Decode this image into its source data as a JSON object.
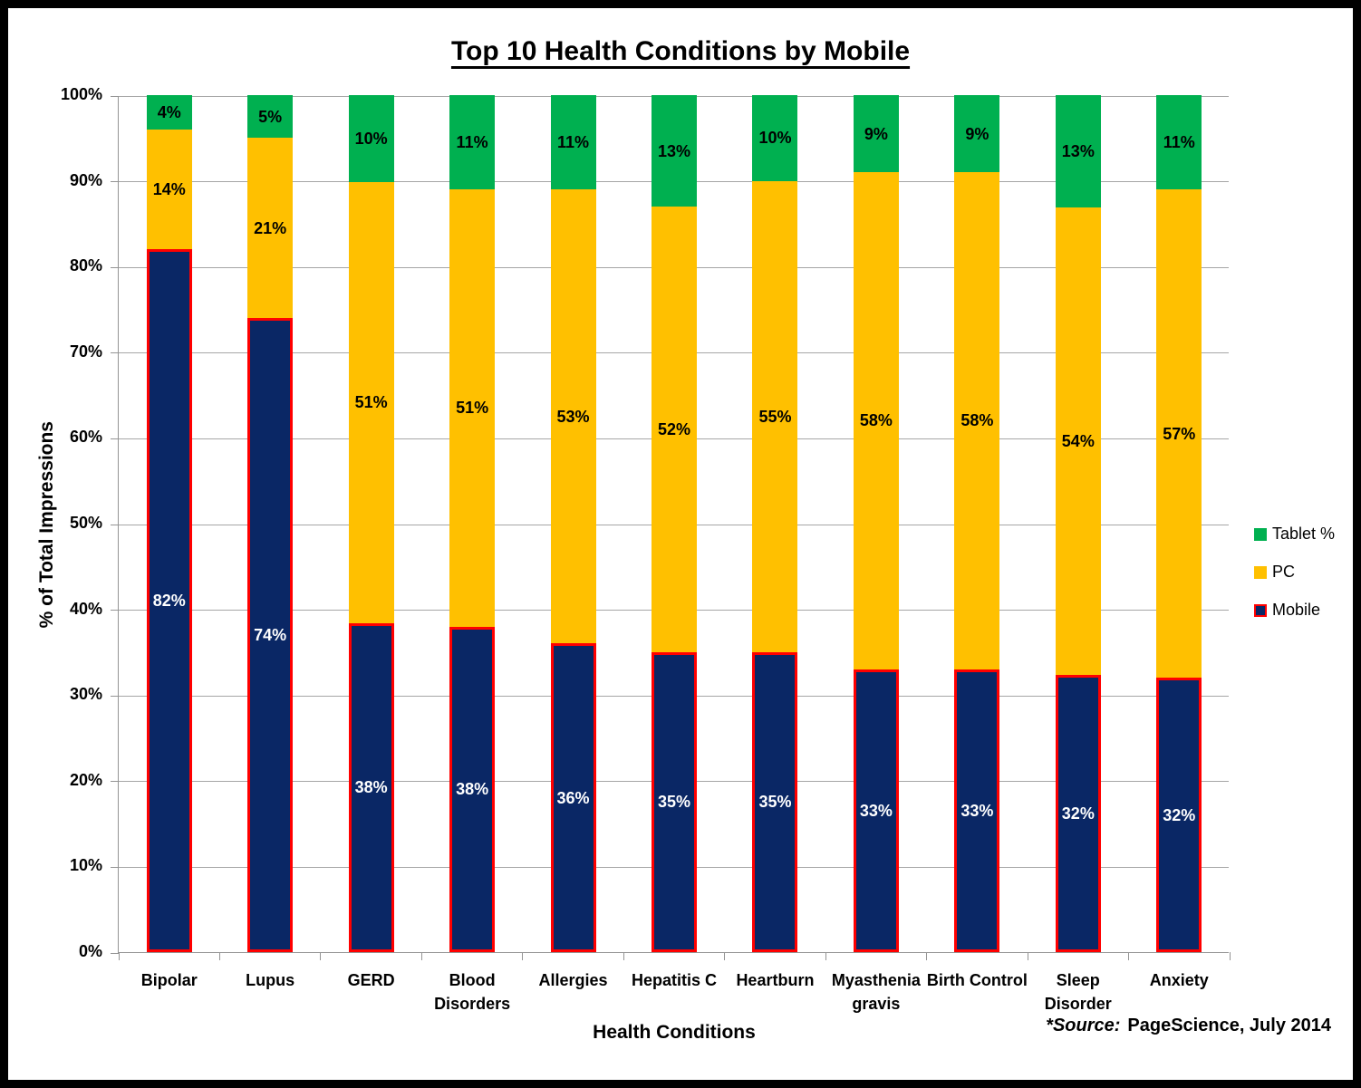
{
  "page": {
    "title": "Top 10 Health Conditions by Mobile",
    "y_axis_title": "% of Total Impressions",
    "x_axis_title": "Health Conditions",
    "source_prefix": "*Source:",
    "source_text": "PageScience, July 2014"
  },
  "legend": {
    "items": [
      {
        "label": "Tablet %",
        "color": "#00B050",
        "border": "#00B050"
      },
      {
        "label": "PC",
        "color": "#FFC000",
        "border": "#FFC000"
      },
      {
        "label": "Mobile",
        "color": "#0A2765",
        "border": "#FF0000"
      }
    ]
  },
  "colors": {
    "mobile": "#0A2765",
    "mobile_border": "#FF0000",
    "pc": "#FFC000",
    "tablet": "#00B050",
    "gridline": "#A6A6A6",
    "axis": "#949494"
  },
  "chart_data": {
    "type": "bar",
    "stacked": true,
    "title": "Top 10 Health Conditions by Mobile",
    "xlabel": "Health Conditions",
    "ylabel": "% of Total Impressions",
    "ylim": [
      0,
      100
    ],
    "grid": true,
    "legend_position": "right",
    "value_suffix": "%",
    "ytick_labels": [
      "0%",
      "10%",
      "20%",
      "30%",
      "40%",
      "50%",
      "60%",
      "70%",
      "80%",
      "90%",
      "100%"
    ],
    "categories": [
      "Bipolar",
      "Lupus",
      "GERD",
      "Blood Disorders",
      "Allergies",
      "Hepatitis C",
      "Heartburn",
      "Myasthenia gravis",
      "Birth Control",
      "Sleep Disorder",
      "Anxiety"
    ],
    "series": [
      {
        "name": "Mobile",
        "values": [
          82,
          74,
          38,
          38,
          36,
          35,
          35,
          33,
          33,
          32,
          32
        ],
        "color": "#0A2765",
        "border": "#FF0000",
        "label_color": "#FFFFFF"
      },
      {
        "name": "PC",
        "values": [
          14,
          21,
          51,
          51,
          53,
          52,
          55,
          58,
          58,
          54,
          57
        ],
        "color": "#FFC000",
        "border": null,
        "label_color": "#000000"
      },
      {
        "name": "Tablet %",
        "values": [
          4,
          5,
          10,
          11,
          11,
          13,
          10,
          9,
          9,
          13,
          11
        ],
        "color": "#00B050",
        "border": null,
        "label_color": "#000000"
      }
    ]
  }
}
